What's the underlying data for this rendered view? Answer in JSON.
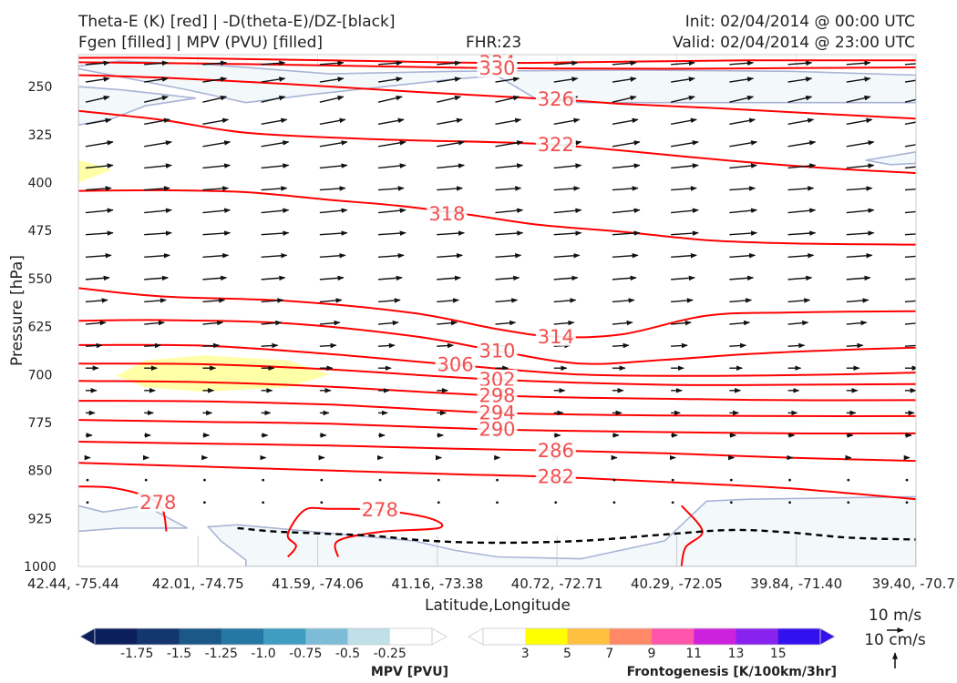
{
  "header": {
    "left_line1": "Theta-E (K) [red] | -D(theta-E)/DZ-[black]",
    "left_line2": "Fgen [filled] | MPV (PVU) [filled]",
    "center": "FHR:23",
    "right_line1": "Init: 02/04/2014 @ 00:00 UTC",
    "right_line2": "Valid: 02/04/2014 @ 23:00 UTC"
  },
  "chart_data": {
    "type": "cross-section",
    "ylabel": "Pressure [hPa]",
    "xlabel": "Latitude,Longitude",
    "y_axis": {
      "ticks": [
        250,
        325,
        400,
        475,
        550,
        625,
        700,
        775,
        850,
        925,
        1000
      ],
      "range": [
        200,
        1000
      ],
      "inverted": true
    },
    "x_axis": {
      "ticks": [
        "42.44, -75.44",
        "42.01, -74.75",
        "41.59, -74.06",
        "41.16, -73.38",
        "40.72, -72.71",
        "40.29, -72.05",
        "39.84, -71.40",
        "39.40, -70.7"
      ]
    },
    "theta_e_contours": [
      {
        "level": "334",
        "color": "#ff0000",
        "label_color": "#f05050",
        "points": [
          [
            0,
            205
          ],
          [
            0.1,
            205
          ],
          [
            0.2,
            207
          ],
          [
            0.35,
            210
          ],
          [
            0.5,
            213
          ],
          [
            0.65,
            211
          ],
          [
            0.8,
            209
          ],
          [
            1,
            209
          ]
        ],
        "label_at": [
          0.5,
          213
        ]
      },
      {
        "level": "330",
        "color": "#ff0000",
        "label_color": "#f05050",
        "points": [
          [
            0,
            212
          ],
          [
            0.15,
            214
          ],
          [
            0.3,
            217
          ],
          [
            0.5,
            221
          ],
          [
            0.7,
            222
          ],
          [
            0.85,
            221
          ],
          [
            1,
            220
          ]
        ],
        "label_at": [
          0.5,
          221
        ]
      },
      {
        "level": "326",
        "color": "#ff0000",
        "label_color": "#f05050",
        "points": [
          [
            0,
            232
          ],
          [
            0.1,
            236
          ],
          [
            0.25,
            246
          ],
          [
            0.4,
            258
          ],
          [
            0.57,
            270
          ],
          [
            0.65,
            277
          ],
          [
            0.75,
            283
          ],
          [
            0.88,
            292
          ],
          [
            1,
            300
          ]
        ],
        "label_at": [
          0.57,
          270
        ]
      },
      {
        "level": "322",
        "color": "#ff0000",
        "label_color": "#f05050",
        "points": [
          [
            0,
            288
          ],
          [
            0.1,
            302
          ],
          [
            0.2,
            322
          ],
          [
            0.35,
            332
          ],
          [
            0.5,
            337
          ],
          [
            0.57,
            341
          ],
          [
            0.65,
            350
          ],
          [
            0.78,
            366
          ],
          [
            0.9,
            378
          ],
          [
            1,
            385
          ]
        ],
        "label_at": [
          0.57,
          341
        ]
      },
      {
        "level": "318",
        "color": "#ff0000",
        "label_color": "#f05050",
        "points": [
          [
            0,
            413
          ],
          [
            0.1,
            412
          ],
          [
            0.2,
            415
          ],
          [
            0.3,
            427
          ],
          [
            0.38,
            436
          ],
          [
            0.46,
            449
          ],
          [
            0.55,
            466
          ],
          [
            0.65,
            477
          ],
          [
            0.75,
            490
          ],
          [
            0.85,
            495
          ],
          [
            1,
            497
          ]
        ],
        "label_at": [
          0.44,
          449
        ]
      },
      {
        "level": "314",
        "color": "#ff0000",
        "label_color": "#f05050",
        "points": [
          [
            0,
            565
          ],
          [
            0.1,
            578
          ],
          [
            0.25,
            585
          ],
          [
            0.4,
            604
          ],
          [
            0.5,
            629
          ],
          [
            0.57,
            641
          ],
          [
            0.65,
            637
          ],
          [
            0.75,
            608
          ],
          [
            0.85,
            603
          ],
          [
            1,
            601
          ]
        ],
        "label_at": [
          0.57,
          641
        ]
      },
      {
        "level": "310",
        "color": "#ff0000",
        "label_color": "#f05050",
        "points": [
          [
            0,
            616
          ],
          [
            0.1,
            615
          ],
          [
            0.25,
            620
          ],
          [
            0.4,
            640
          ],
          [
            0.5,
            663
          ],
          [
            0.6,
            683
          ],
          [
            0.7,
            677
          ],
          [
            0.8,
            668
          ],
          [
            0.9,
            662
          ],
          [
            1,
            658
          ]
        ],
        "label_at": [
          0.5,
          663
        ]
      },
      {
        "level": "306",
        "color": "#ff0000",
        "label_color": "#f05050",
        "points": [
          [
            0,
            654
          ],
          [
            0.15,
            655
          ],
          [
            0.3,
            668
          ],
          [
            0.45,
            685
          ],
          [
            0.6,
            700
          ],
          [
            0.75,
            702
          ],
          [
            0.9,
            700
          ],
          [
            1,
            697
          ]
        ],
        "label_at": [
          0.45,
          685
        ]
      },
      {
        "level": "302",
        "color": "#ff0000",
        "label_color": "#f05050",
        "points": [
          [
            0,
            683
          ],
          [
            0.15,
            684
          ],
          [
            0.3,
            692
          ],
          [
            0.5,
            708
          ],
          [
            0.7,
            716
          ],
          [
            0.85,
            716
          ],
          [
            1,
            715
          ]
        ],
        "label_at": [
          0.5,
          708
        ]
      },
      {
        "level": "298",
        "color": "#ff0000",
        "label_color": "#f05050",
        "points": [
          [
            0,
            710
          ],
          [
            0.15,
            712
          ],
          [
            0.3,
            719
          ],
          [
            0.5,
            733
          ],
          [
            0.7,
            738
          ],
          [
            0.85,
            740
          ],
          [
            1,
            740
          ]
        ],
        "label_at": [
          0.5,
          733
        ]
      },
      {
        "level": "294",
        "color": "#ff0000",
        "label_color": "#f05050",
        "points": [
          [
            0,
            741
          ],
          [
            0.15,
            742
          ],
          [
            0.3,
            747
          ],
          [
            0.5,
            760
          ],
          [
            0.7,
            764
          ],
          [
            0.85,
            765
          ],
          [
            1,
            765
          ]
        ],
        "label_at": [
          0.5,
          760
        ]
      },
      {
        "level": "290",
        "color": "#ff0000",
        "label_color": "#f05050",
        "points": [
          [
            0,
            771
          ],
          [
            0.15,
            774
          ],
          [
            0.3,
            777
          ],
          [
            0.5,
            786
          ],
          [
            0.7,
            790
          ],
          [
            0.85,
            792
          ],
          [
            1,
            792
          ]
        ],
        "label_at": [
          0.5,
          786
        ]
      },
      {
        "level": "286",
        "color": "#ff0000",
        "label_color": "#f05050",
        "points": [
          [
            0,
            805
          ],
          [
            0.15,
            808
          ],
          [
            0.3,
            811
          ],
          [
            0.45,
            816
          ],
          [
            0.57,
            819
          ],
          [
            0.7,
            823
          ],
          [
            0.85,
            830
          ],
          [
            1,
            835
          ]
        ],
        "label_at": [
          0.57,
          819
        ]
      },
      {
        "level": "282",
        "color": "#ff0000",
        "label_color": "#f05050",
        "points": [
          [
            0,
            838
          ],
          [
            0.15,
            844
          ],
          [
            0.3,
            850
          ],
          [
            0.45,
            856
          ],
          [
            0.57,
            860
          ],
          [
            0.7,
            868
          ],
          [
            0.85,
            878
          ],
          [
            1,
            895
          ]
        ],
        "label_at": [
          0.57,
          860
        ]
      },
      {
        "level": "278",
        "color": "#ff0000",
        "label_color": "#f05050",
        "points": [
          [
            0,
            875
          ],
          [
            0.04,
            877
          ],
          [
            0.08,
            890
          ],
          [
            0.1,
            910
          ],
          [
            0.105,
            945
          ]
        ],
        "label_at": [
          0.095,
          900
        ]
      },
      {
        "level": "278",
        "color": "#ff0000",
        "label_color": "#f05050",
        "points": [
          [
            0.25,
            985
          ],
          [
            0.26,
            968
          ],
          [
            0.25,
            950
          ],
          [
            0.27,
            912
          ],
          [
            0.3,
            910
          ],
          [
            0.36,
            912
          ],
          [
            0.42,
            925
          ],
          [
            0.43,
            940
          ],
          [
            0.36,
            946
          ],
          [
            0.31,
            960
          ],
          [
            0.31,
            985
          ]
        ],
        "label_at": [
          0.36,
          912
        ]
      },
      {
        "level": "",
        "color": "#ff0000",
        "label_color": "#f05050",
        "points": [
          [
            0.72,
            1000
          ],
          [
            0.725,
            970
          ],
          [
            0.745,
            945
          ],
          [
            0.72,
            905
          ]
        ],
        "label_at": null
      }
    ],
    "stability_contour_dashed": {
      "color": "#000000",
      "points": [
        [
          0.19,
          940
        ],
        [
          0.23,
          945
        ],
        [
          0.28,
          948
        ],
        [
          0.35,
          952
        ],
        [
          0.42,
          960
        ],
        [
          0.5,
          963
        ],
        [
          0.6,
          960
        ],
        [
          0.7,
          950
        ],
        [
          0.78,
          943
        ],
        [
          0.85,
          947
        ],
        [
          0.92,
          955
        ],
        [
          1,
          958
        ]
      ]
    },
    "mpv_filled_regions": [
      {
        "fill_value": "-0.25",
        "points": [
          [
            0,
            222
          ],
          [
            0.13,
            255
          ],
          [
            0.2,
            275
          ],
          [
            0.28,
            262
          ],
          [
            0.45,
            238
          ],
          [
            0.5,
            233
          ],
          [
            0.55,
            272
          ],
          [
            0.6,
            275
          ],
          [
            0.8,
            275
          ],
          [
            1,
            275
          ],
          [
            1,
            232
          ],
          [
            0.85,
            226
          ],
          [
            0.66,
            224
          ],
          [
            0.45,
            226
          ],
          [
            0.3,
            230
          ],
          [
            0.15,
            215
          ],
          [
            0.05,
            210
          ],
          [
            0,
            218
          ]
        ]
      },
      {
        "fill_value": "-0.25",
        "points": [
          [
            0,
            250
          ],
          [
            0.05,
            255
          ],
          [
            0.1,
            262
          ],
          [
            0.14,
            268
          ],
          [
            0.08,
            280
          ],
          [
            0.04,
            300
          ],
          [
            0,
            310
          ]
        ]
      },
      {
        "fill_value": "-0.25",
        "points": [
          [
            0.94,
            365
          ],
          [
            1,
            352
          ],
          [
            1,
            370
          ],
          [
            0.97,
            372
          ]
        ]
      },
      {
        "fill_value": "-0.25",
        "points": [
          [
            0,
            905
          ],
          [
            0.03,
            915
          ],
          [
            0.08,
            905
          ],
          [
            0.13,
            940
          ],
          [
            0.05,
            940
          ],
          [
            0,
            945
          ]
        ]
      },
      {
        "fill_value": "-0.25",
        "points": [
          [
            0.155,
            938
          ],
          [
            0.19,
            935
          ],
          [
            0.25,
            942
          ],
          [
            0.3,
            948
          ],
          [
            0.4,
            960
          ],
          [
            0.45,
            975
          ],
          [
            0.5,
            985
          ],
          [
            0.6,
            988
          ],
          [
            0.7,
            960
          ],
          [
            0.75,
            898
          ],
          [
            0.8,
            895
          ],
          [
            0.9,
            893
          ],
          [
            1,
            891
          ],
          [
            1,
            1000
          ],
          [
            0.2,
            1000
          ],
          [
            0.2,
            990
          ],
          [
            0.17,
            960
          ]
        ]
      }
    ],
    "fgen_filled_regions": [
      {
        "fill_value": "3",
        "points": [
          [
            0,
            365
          ],
          [
            0.015,
            370
          ],
          [
            0.04,
            380
          ],
          [
            0.01,
            395
          ],
          [
            0,
            400
          ]
        ]
      },
      {
        "fill_value": "3",
        "points": [
          [
            0.045,
            702
          ],
          [
            0.08,
            678
          ],
          [
            0.15,
            670
          ],
          [
            0.25,
            678
          ],
          [
            0.3,
            700
          ],
          [
            0.25,
            720
          ],
          [
            0.15,
            727
          ],
          [
            0.08,
            720
          ]
        ]
      }
    ],
    "wind_rows": [
      {
        "p": 214,
        "dx": 26,
        "dy": 2
      },
      {
        "p": 240,
        "dx": 26,
        "dy": 4
      },
      {
        "p": 270,
        "dx": 26,
        "dy": 6
      },
      {
        "p": 305,
        "dx": 28,
        "dy": 5
      },
      {
        "p": 340,
        "dx": 30,
        "dy": 5
      },
      {
        "p": 375,
        "dx": 30,
        "dy": 3
      },
      {
        "p": 410,
        "dx": 28,
        "dy": 2
      },
      {
        "p": 445,
        "dx": 30,
        "dy": 3
      },
      {
        "p": 480,
        "dx": 30,
        "dy": 2
      },
      {
        "p": 515,
        "dx": 28,
        "dy": 2
      },
      {
        "p": 550,
        "dx": 26,
        "dy": 2
      },
      {
        "p": 585,
        "dx": 24,
        "dy": 2
      },
      {
        "p": 620,
        "dx": 22,
        "dy": 2
      },
      {
        "p": 655,
        "dx": 18,
        "dy": 1
      },
      {
        "p": 690,
        "dx": 14,
        "dy": 0
      },
      {
        "p": 725,
        "dx": 12,
        "dy": 0
      },
      {
        "p": 760,
        "dx": 10,
        "dy": 0
      },
      {
        "p": 795,
        "dx": 7,
        "dy": 0
      },
      {
        "p": 830,
        "dx": 5,
        "dy": 0
      },
      {
        "p": 865,
        "dx": 4,
        "dy": 0
      },
      {
        "p": 900,
        "dx": 3,
        "dy": 0
      }
    ],
    "mpv_colorbar": {
      "label": "MPV [PVU]",
      "ticks": [
        "-1.75",
        "-1.5",
        "-1.25",
        "-1.0",
        "-0.75",
        "-0.5",
        "-0.25"
      ],
      "colors": [
        "#0b1f5c",
        "#14366e",
        "#1b5887",
        "#2478a3",
        "#3f9dc2",
        "#7cbcd6",
        "#bfdfe9",
        "#ffffff"
      ]
    },
    "fgen_colorbar": {
      "label": "Frontogenesis [K/100km/3hr]",
      "ticks": [
        "3",
        "5",
        "7",
        "9",
        "11",
        "13",
        "15"
      ],
      "colors": [
        "#ffffff",
        "#ffff00",
        "#ffc040",
        "#ff8866",
        "#ff55aa",
        "#cc22dd",
        "#8822ee",
        "#3311ee"
      ]
    },
    "reference_vectors": {
      "horizontal": "10 m/s",
      "vertical": "10 cm/s"
    }
  }
}
